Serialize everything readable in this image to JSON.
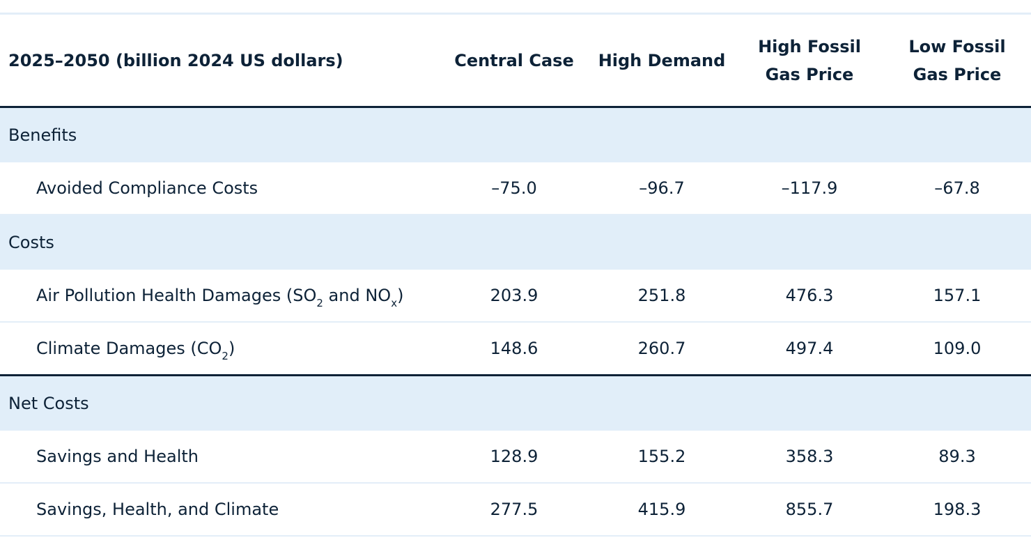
{
  "table": {
    "header": [
      "2025–2050 (billion 2024 US dollars)",
      "Central Case",
      "High Demand",
      "High Fossil Gas Price",
      "Low Fossil Gas Price"
    ],
    "sections": [
      {
        "title": "Benefits",
        "rows": [
          {
            "label": [
              "Avoided Compliance Costs"
            ],
            "values": [
              "–75.0",
              "–96.7",
              "–117.9",
              "–67.8"
            ]
          }
        ]
      },
      {
        "title": "Costs",
        "rows": [
          {
            "label": [
              "Air Pollution Health Damages (SO",
              "2",
              " and NO",
              "x",
              ")"
            ],
            "values": [
              "203.9",
              "251.8",
              "476.3",
              "157.1"
            ]
          },
          {
            "label": [
              "Climate Damages (CO",
              "2",
              ")"
            ],
            "values": [
              "148.6",
              "260.7",
              "497.4",
              "109.0"
            ]
          }
        ]
      },
      {
        "title": "Net Costs",
        "rows": [
          {
            "label": [
              "Savings and Health"
            ],
            "values": [
              "128.9",
              "155.2",
              "358.3",
              "89.3"
            ]
          },
          {
            "label": [
              "Savings, Health, and Climate"
            ],
            "values": [
              "277.5",
              "415.9",
              "855.7",
              "198.3"
            ]
          }
        ]
      }
    ]
  }
}
